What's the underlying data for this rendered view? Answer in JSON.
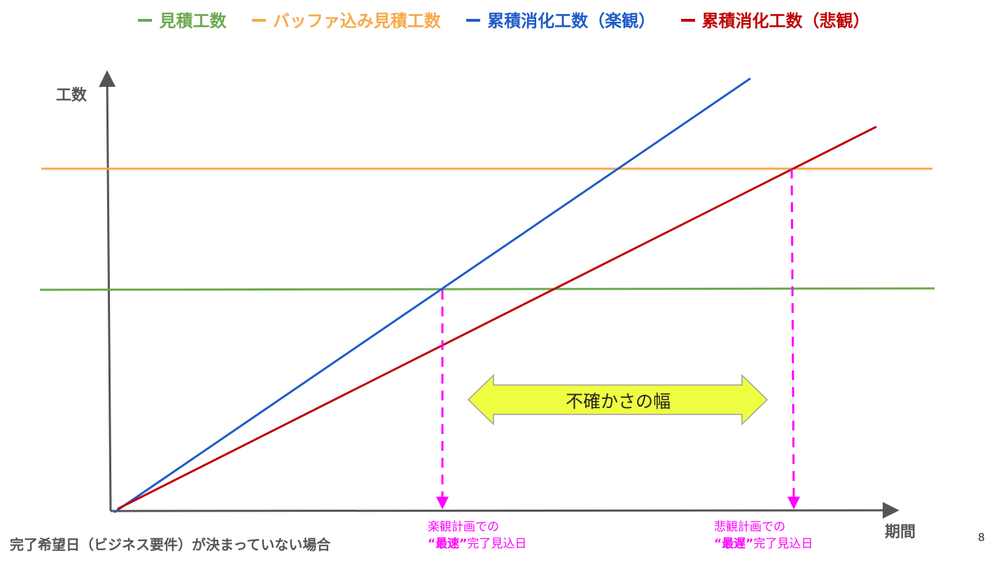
{
  "legend": [
    {
      "label": "見積工数",
      "color": "#6aa84f"
    },
    {
      "label": "バッファ込み見積工数",
      "color": "#f6a94b"
    },
    {
      "label": "累積消化工数（楽観）",
      "color": "#1f5bc6"
    },
    {
      "label": "累積消化工数（悲観）",
      "color": "#c00000"
    }
  ],
  "axes": {
    "y_label": "工数",
    "x_label": "期間"
  },
  "uncertainty_label": "不確かさの幅",
  "optimistic_note": {
    "line1": "楽観計画での",
    "quote_open": "“",
    "emphasis": "最速",
    "quote_close": "”",
    "rest": "完了見込日"
  },
  "pessimistic_note": {
    "line1": "悲観計画での",
    "quote_open": "“",
    "emphasis": "最遅",
    "quote_close": "”",
    "rest": "完了見込日"
  },
  "footer_caption": "完了希望日（ビジネス要件）が決まっていない場合",
  "page_number": "8",
  "colors": {
    "estimate": "#6aa84f",
    "buffer": "#f6a94b",
    "optimistic": "#1f5bc6",
    "pessimistic": "#c00000",
    "marker": "#ff00ff",
    "arrow_fill": "#eeff41",
    "arrow_stroke": "#9e9e9e",
    "axis": "#555555"
  }
}
